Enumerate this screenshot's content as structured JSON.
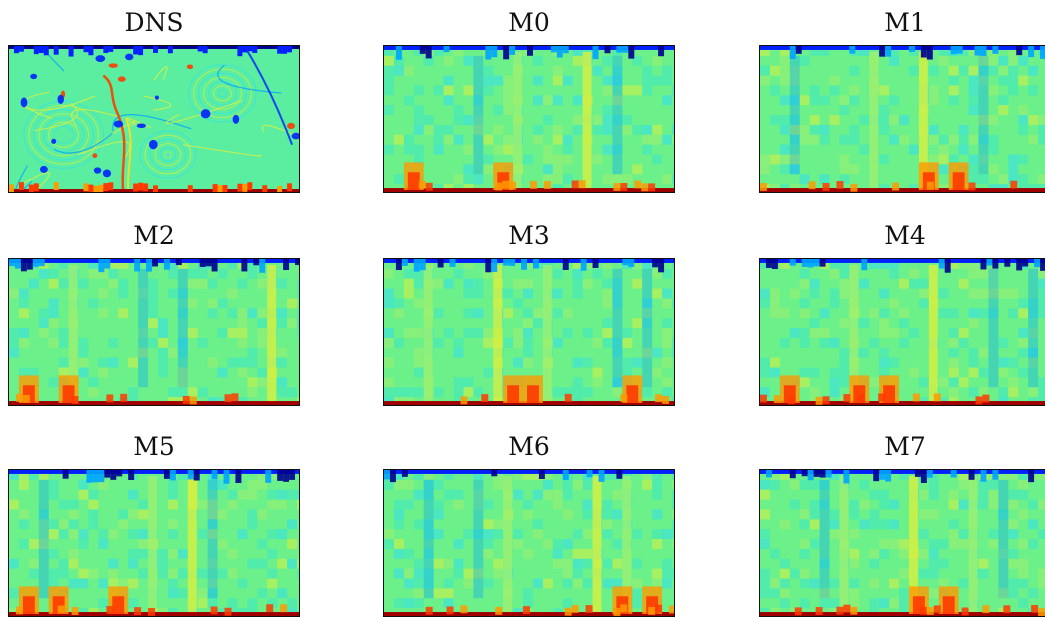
{
  "figure": {
    "colormap": "jet",
    "panels": [
      {
        "title": "DNS"
      },
      {
        "title": "M0"
      },
      {
        "title": "M1"
      },
      {
        "title": "M2"
      },
      {
        "title": "M3"
      },
      {
        "title": "M4"
      },
      {
        "title": "M5"
      },
      {
        "title": "M6"
      },
      {
        "title": "M7"
      }
    ]
  }
}
